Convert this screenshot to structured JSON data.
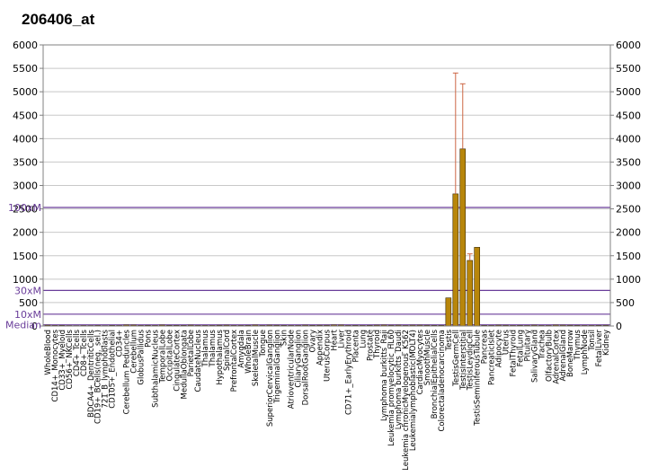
{
  "chart_data": {
    "type": "bar",
    "title": "206406_at",
    "ylim": [
      0,
      6000
    ],
    "yticks": [
      0,
      500,
      1000,
      1500,
      2000,
      2500,
      3000,
      3500,
      4000,
      4500,
      5000,
      5500,
      6000
    ],
    "grid": true,
    "bar_color": "#b8860b",
    "error_color": "#cc6644",
    "reference_lines": [
      {
        "label": "100xM",
        "value": 2530,
        "color": "#6a3d9a"
      },
      {
        "label": "30xM",
        "value": 760,
        "color": "#6a3d9a"
      },
      {
        "label": "10xM",
        "value": 253,
        "color": "#6a3d9a"
      },
      {
        "label": "Median",
        "value": 25,
        "color": "#6a3d9a"
      }
    ],
    "categories": [
      "WholeBlood",
      "CD14+_Monocytes",
      "CD33+_Myeloid",
      "CD56+_NKCells",
      "CD4+_Tcells",
      "CD8+_Tcells",
      "BDCA4+_DentriticCells",
      "CD19+_BCells(neg._sel.)",
      "721_B_lymphoblasts",
      "CD105+_Endothelial",
      "CD34+",
      "Cerebellum Peduncles",
      "Cerebellum",
      "GlobusPallidus",
      "Pons",
      "SubthalamicNucleus",
      "TemporalLobe",
      "OccipitalLobe",
      "CingulateCortex",
      "MedullaOblongata",
      "ParietalLobe",
      "CaudateNucleus",
      "Thalamus",
      "Thalamus",
      "Hypothalamus",
      "SpinalCord",
      "PrefrontalCortex",
      "Amygdala",
      "WholeBrain",
      "SkeletalMuscle",
      "Tongue",
      "SuperiorCervicalGanglion",
      "TrigeminalGanglion",
      "Skin",
      "AtrioventricularNode",
      "CiliaryGanglion",
      "DorsalRootGanglion",
      "Ovary",
      "Appendix",
      "UterusCorpus",
      "Heart",
      "Liver",
      "CD71+_EarlyErythroid",
      "Placenta",
      "Lung",
      "Prostate",
      "Thyroid",
      "Lymphoma burkitts_Raji",
      "Leukemia promyelocytic_HL60",
      "Lymphoma burkitts_Daudi",
      "Leukemia chronicMyelogenous_K562",
      "Leukemialymphoblastic(MOLT4)",
      "CardiacMyocytes",
      "SmoothMuscle",
      "BronchialEpithelialCells",
      "Colorectaladenocarcinoma",
      "Testis",
      "TestisGermCell",
      "TestisInterstitial",
      "TestisLeydigCell",
      "TestisSeminiferousTubule",
      "Pancreas",
      "PancreaticIslet",
      "Adipocyte",
      "Uterus",
      "FetalThyroid",
      "FetalLung",
      "Pituitary",
      "SalivaryGland",
      "Trachea",
      "OlfactoryBulb",
      "AdrenalCortex",
      "AdrenalGland",
      "BoneMarrow",
      "Thymus",
      "LymphNode",
      "Tonsil",
      "FetalLiver",
      "Kidney"
    ],
    "values": [
      18,
      12,
      14,
      10,
      9,
      11,
      10,
      12,
      9,
      13,
      11,
      22,
      20,
      12,
      14,
      12,
      20,
      14,
      14,
      13,
      18,
      12,
      12,
      12,
      16,
      18,
      12,
      12,
      14,
      20,
      12,
      18,
      16,
      14,
      12,
      12,
      18,
      14,
      16,
      16,
      22,
      20,
      12,
      14,
      12,
      14,
      18,
      20,
      16,
      18,
      12,
      18,
      18,
      16,
      14,
      14,
      600,
      2820,
      3780,
      1400,
      1680,
      14,
      12,
      18,
      16,
      12,
      14,
      12,
      18,
      12,
      12,
      20,
      18,
      16,
      14,
      12,
      12,
      14,
      16
    ],
    "errors": [
      0,
      0,
      0,
      0,
      0,
      0,
      0,
      0,
      0,
      0,
      0,
      0,
      0,
      0,
      0,
      0,
      0,
      0,
      0,
      0,
      0,
      0,
      0,
      0,
      0,
      0,
      0,
      0,
      0,
      0,
      0,
      0,
      0,
      0,
      0,
      0,
      0,
      0,
      0,
      0,
      0,
      0,
      0,
      0,
      0,
      0,
      0,
      0,
      0,
      0,
      0,
      0,
      0,
      0,
      0,
      0,
      0,
      2580,
      1390,
      140,
      0,
      0,
      0,
      0,
      0,
      0,
      0,
      0,
      0,
      0,
      0,
      0,
      0,
      0,
      0,
      0,
      0,
      0,
      0
    ]
  }
}
